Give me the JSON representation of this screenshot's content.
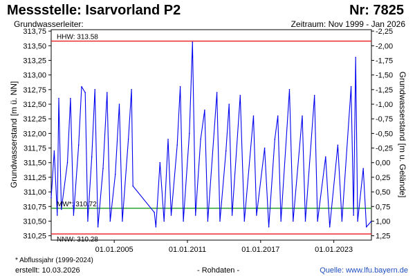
{
  "header": {
    "title": "Messstelle: Isarvorland P2",
    "number": "Nr: 7825",
    "aquifer": "Grundwasserleiter:",
    "period": "Zeitraum: Nov 1999 - Jan 2026"
  },
  "footer": {
    "footnote": "* Abflussjahr (1999-2024)",
    "created": "erstellt:  10.03.2026",
    "raw": "- Rohdaten -",
    "source": "Quelle: www.lfu.bayern.de"
  },
  "chart_data": {
    "type": "line",
    "ylabel_left": "Grundwasserstand [m ü. NN]",
    "ylabel_right": "Grundwasserstand [m u. Gelände]",
    "ylim": [
      310.175,
      313.775
    ],
    "yticks": [
      310.25,
      310.5,
      310.75,
      311.0,
      311.25,
      311.5,
      311.75,
      312.0,
      312.25,
      312.5,
      312.75,
      313.0,
      313.25,
      313.5,
      313.75
    ],
    "ytick_labels": [
      "310,25",
      "310,50",
      "310,75",
      "311,00",
      "311,25",
      "311,50",
      "311,75",
      "312,00",
      "312,25",
      "312,50",
      "312,75",
      "313,00",
      "313,25",
      "313,50",
      "313,75"
    ],
    "right_ticks": [
      {
        "y": 313.75,
        "label": "-2,25"
      },
      {
        "y": 313.5,
        "label": "-2,00"
      },
      {
        "y": 313.25,
        "label": "-1,75"
      },
      {
        "y": 313.0,
        "label": "-1,50"
      },
      {
        "y": 312.75,
        "label": "-1,25"
      },
      {
        "y": 312.5,
        "label": "-1,00"
      },
      {
        "y": 312.25,
        "label": "-0,75"
      },
      {
        "y": 312.0,
        "label": "-0,50"
      },
      {
        "y": 311.75,
        "label": "-0,25"
      },
      {
        "y": 311.5,
        "label": "0,00"
      },
      {
        "y": 311.25,
        "label": "0,25"
      },
      {
        "y": 311.0,
        "label": "0,50"
      },
      {
        "y": 310.75,
        "label": "0,75"
      },
      {
        "y": 310.5,
        "label": "1,00"
      },
      {
        "y": 310.25,
        "label": "1,25"
      }
    ],
    "xlim": [
      "1999-11-01",
      "2026-01-31"
    ],
    "xticks": [
      {
        "date": "2005-01-01",
        "label": "01.01.2005"
      },
      {
        "date": "2011-01-01",
        "label": "01.01.2011"
      },
      {
        "date": "2017-01-01",
        "label": "01.01.2017"
      },
      {
        "date": "2023-01-01",
        "label": "01.01.2023"
      }
    ],
    "reference_lines": [
      {
        "name": "HHW",
        "label": "HHW: 313.58",
        "value": 313.58,
        "color": "#e8191b"
      },
      {
        "name": "MW",
        "label": "MW*: 310.72",
        "value": 310.72,
        "color": "#1a9a1a"
      },
      {
        "name": "NNW",
        "label": "NNW: 310.28",
        "value": 310.28,
        "color": "#e8191b"
      }
    ],
    "series": [
      {
        "color": "#0000ee",
        "points": [
          [
            "1999-11-01",
            310.9
          ],
          [
            "2000-02-01",
            311.7
          ],
          [
            "2000-05-01",
            310.6
          ],
          [
            "2000-06-15",
            312.6
          ],
          [
            "2000-09-01",
            310.7
          ],
          [
            "2001-03-01",
            311.5
          ],
          [
            "2001-06-01",
            312.6
          ],
          [
            "2001-09-01",
            310.6
          ],
          [
            "2002-02-01",
            311.8
          ],
          [
            "2002-05-01",
            312.8
          ],
          [
            "2002-08-15",
            312.7
          ],
          [
            "2002-11-01",
            310.5
          ],
          [
            "2003-03-01",
            311.6
          ],
          [
            "2003-06-01",
            312.75
          ],
          [
            "2003-09-01",
            310.4
          ],
          [
            "2004-02-01",
            311.4
          ],
          [
            "2004-06-01",
            312.7
          ],
          [
            "2004-09-01",
            310.5
          ],
          [
            "2005-02-01",
            311.3
          ],
          [
            "2005-06-01",
            312.5
          ],
          [
            "2005-09-01",
            310.5
          ],
          [
            "2006-03-01",
            311.9
          ],
          [
            "2006-06-01",
            312.75
          ],
          [
            "2006-07-15",
            311.1
          ],
          [
            "2008-04-15",
            310.65
          ],
          [
            "2008-06-01",
            310.4
          ],
          [
            "2008-10-01",
            311.5
          ],
          [
            "2009-02-01",
            310.5
          ],
          [
            "2009-06-01",
            311.9
          ],
          [
            "2009-09-01",
            310.6
          ],
          [
            "2010-03-01",
            311.8
          ],
          [
            "2010-06-01",
            312.8
          ],
          [
            "2010-09-01",
            310.5
          ],
          [
            "2011-03-01",
            312.0
          ],
          [
            "2011-06-01",
            313.56
          ],
          [
            "2011-09-01",
            310.6
          ],
          [
            "2012-02-01",
            311.9
          ],
          [
            "2012-06-01",
            312.4
          ],
          [
            "2012-09-01",
            310.5
          ],
          [
            "2013-06-01",
            312.7
          ],
          [
            "2013-09-01",
            310.5
          ],
          [
            "2014-03-01",
            311.7
          ],
          [
            "2014-06-01",
            312.5
          ],
          [
            "2014-09-01",
            310.6
          ],
          [
            "2015-05-01",
            312.65
          ],
          [
            "2015-09-01",
            310.5
          ],
          [
            "2016-06-01",
            312.3
          ],
          [
            "2016-09-01",
            310.6
          ],
          [
            "2017-05-01",
            311.75
          ],
          [
            "2017-09-01",
            310.4
          ],
          [
            "2018-03-01",
            311.9
          ],
          [
            "2018-06-01",
            312.3
          ],
          [
            "2018-09-01",
            310.5
          ],
          [
            "2019-05-15",
            312.75
          ],
          [
            "2019-09-01",
            310.5
          ],
          [
            "2020-06-01",
            312.3
          ],
          [
            "2020-09-01",
            310.5
          ],
          [
            "2021-06-01",
            312.65
          ],
          [
            "2021-09-01",
            310.5
          ],
          [
            "2022-05-01",
            311.6
          ],
          [
            "2022-09-01",
            310.4
          ],
          [
            "2023-05-01",
            311.8
          ],
          [
            "2023-09-01",
            310.5
          ],
          [
            "2024-06-01",
            312.8
          ],
          [
            "2024-08-15",
            310.6
          ],
          [
            "2024-10-15",
            313.3
          ],
          [
            "2024-12-15",
            310.5
          ],
          [
            "2025-06-01",
            311.4
          ],
          [
            "2025-09-01",
            310.4
          ],
          [
            "2026-01-31",
            310.5
          ]
        ]
      }
    ]
  }
}
